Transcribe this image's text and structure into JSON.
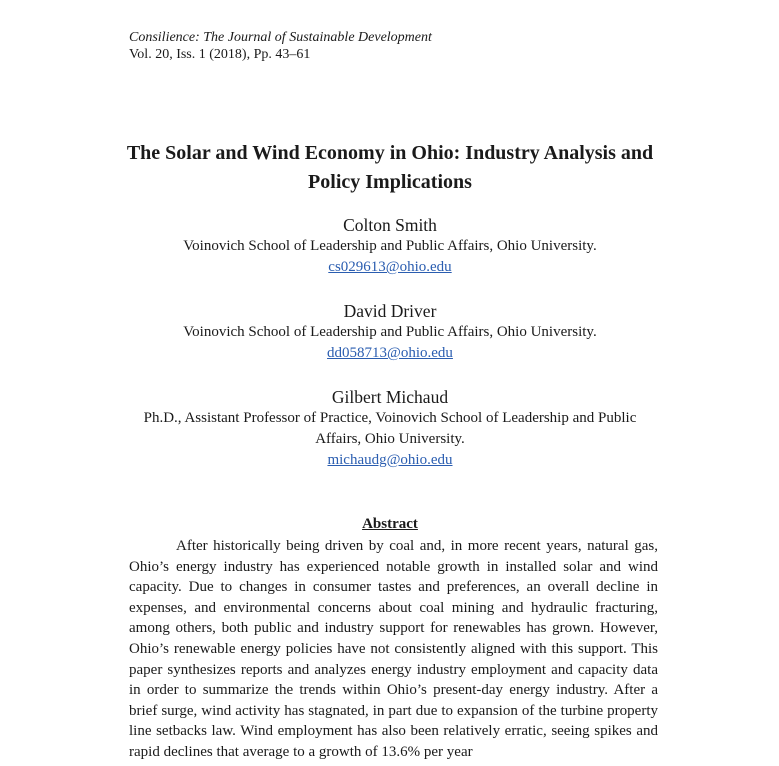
{
  "journal": {
    "name": "Consilience: The Journal of Sustainable Development",
    "volume": "Vol. 20, Iss. 1 (2018), Pp. 43–61"
  },
  "title": "The Solar and Wind Economy in Ohio: Industry Analysis and Policy Implications",
  "authors": [
    {
      "name": "Colton Smith",
      "affiliation": "Voinovich School of Leadership and Public Affairs, Ohio University.",
      "email": "cs029613@ohio.edu"
    },
    {
      "name": "David Driver",
      "affiliation": "Voinovich School of Leadership and Public Affairs, Ohio University.",
      "email": "dd058713@ohio.edu"
    },
    {
      "name": "Gilbert Michaud",
      "affiliation": "Ph.D., Assistant Professor of Practice, Voinovich School of Leadership and Public Affairs, Ohio University.",
      "email": "michaudg@ohio.edu"
    }
  ],
  "abstract": {
    "heading": "Abstract",
    "text": "After historically being driven by coal and, in more recent years, natural gas, Ohio’s energy industry has experienced notable growth in installed solar and wind capacity. Due to changes in consumer tastes and preferences, an overall decline in expenses, and environmental concerns about coal mining and hydraulic fracturing, among others, both public and industry support for renewables has grown. However, Ohio’s renewable energy policies have not consistently aligned with this support. This paper synthesizes reports and analyzes energy industry employment and capacity data in order to summarize the trends within Ohio’s present-day energy industry. After a brief surge, wind activity has stagnated, in part due to expansion of the turbine property line setbacks law. Wind employment has also been relatively erratic, seeing spikes and rapid declines that average to a growth of 13.6% per year"
  }
}
